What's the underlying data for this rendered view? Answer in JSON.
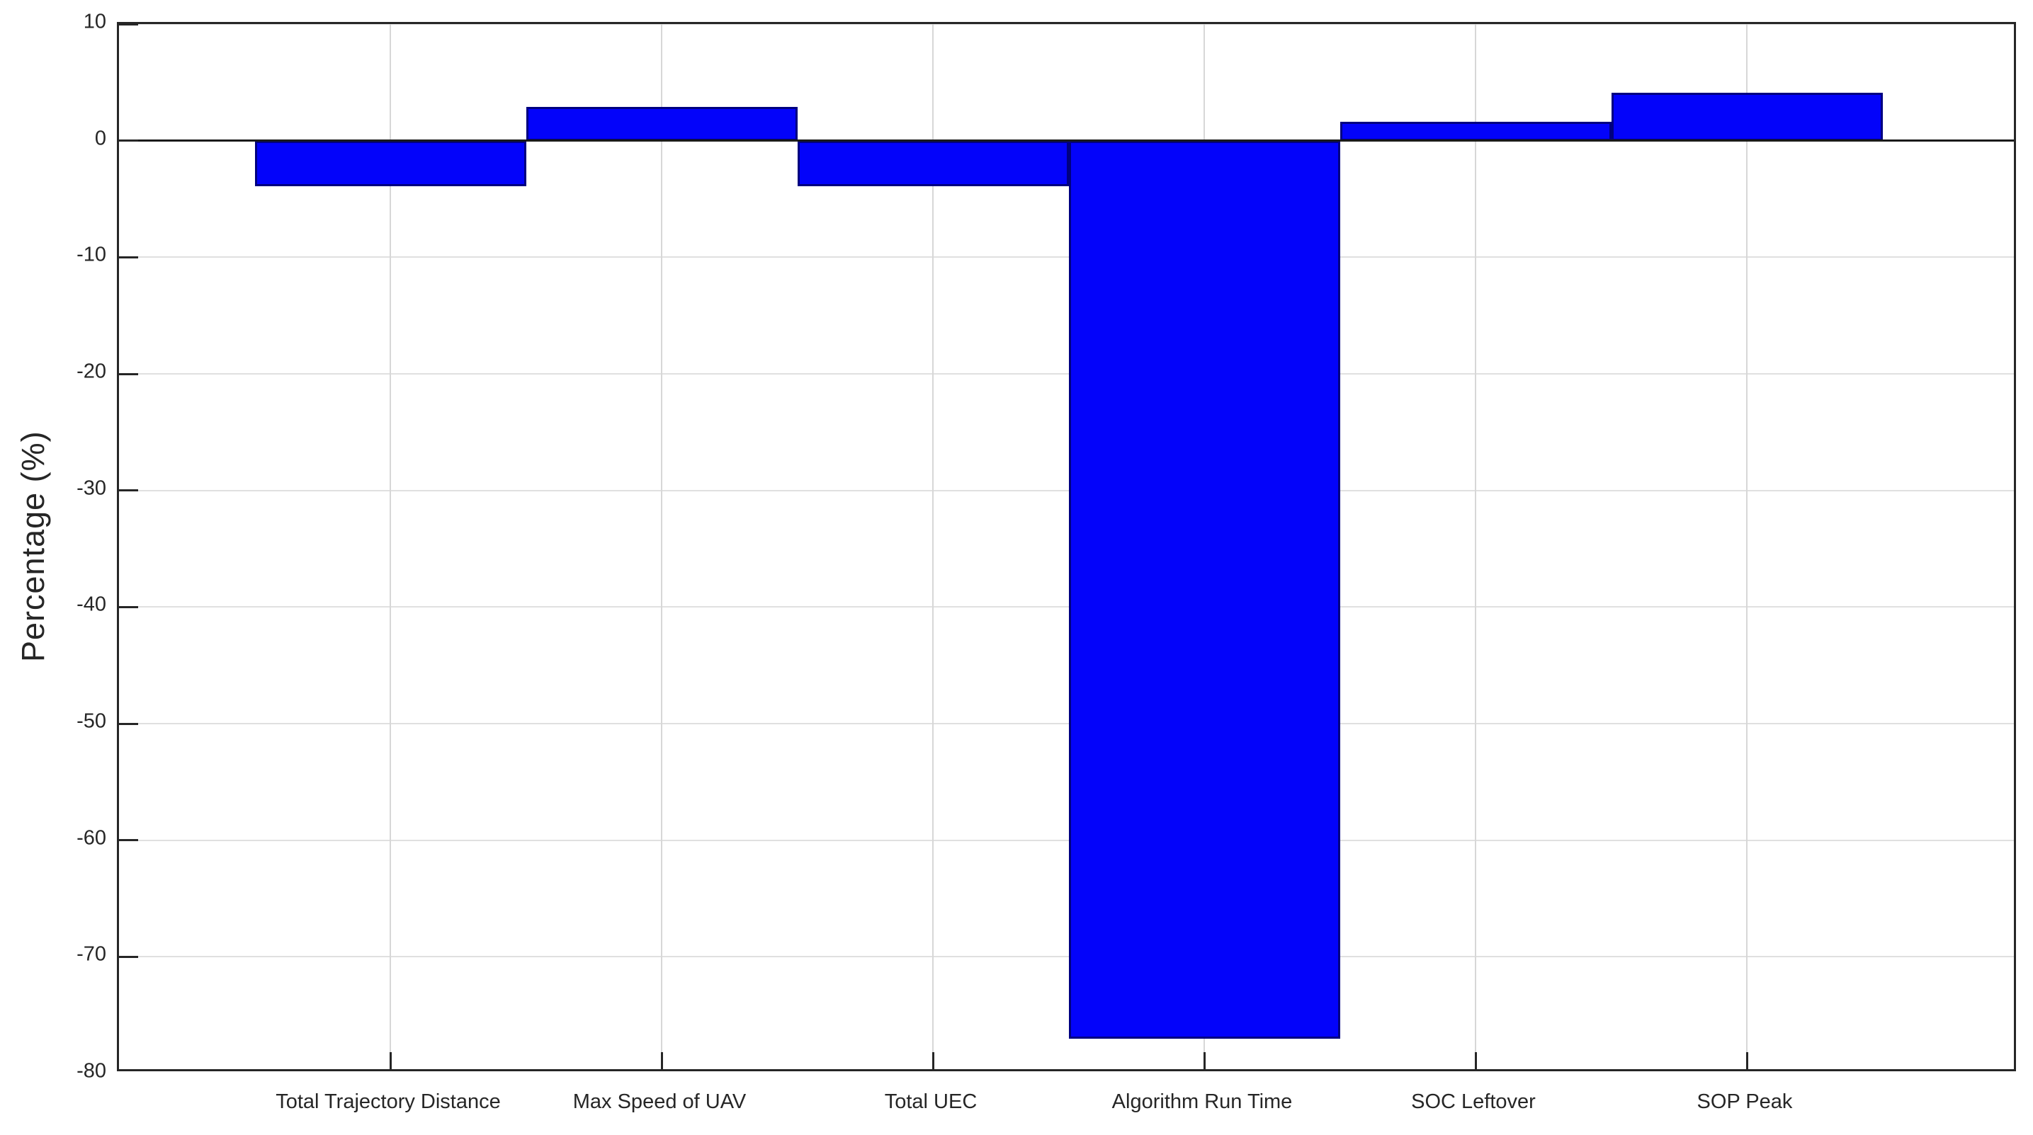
{
  "chart_data": {
    "type": "bar",
    "title": "",
    "xlabel": "",
    "ylabel": "Percentage (%)",
    "categories": [
      "Total Trajectory Distance",
      "Max Speed of UAV",
      "Total UEC",
      "Algorithm Run Time",
      "SOC Leftover",
      "SOP Peak"
    ],
    "values": [
      -3.9,
      2.9,
      -3.9,
      -77,
      1.6,
      4.1
    ],
    "ylim": [
      -80,
      10
    ],
    "yticks": [
      10,
      0,
      -10,
      -20,
      -30,
      -40,
      -50,
      -60,
      -70,
      -80
    ],
    "grid": true,
    "legend": "none",
    "bar_width": 1.0,
    "bar_color": "#0303fa",
    "bar_edge_color": "#000080",
    "axis_color": "#262626",
    "grid_color": "#e0e0e0",
    "background_color": "#ffffff"
  }
}
